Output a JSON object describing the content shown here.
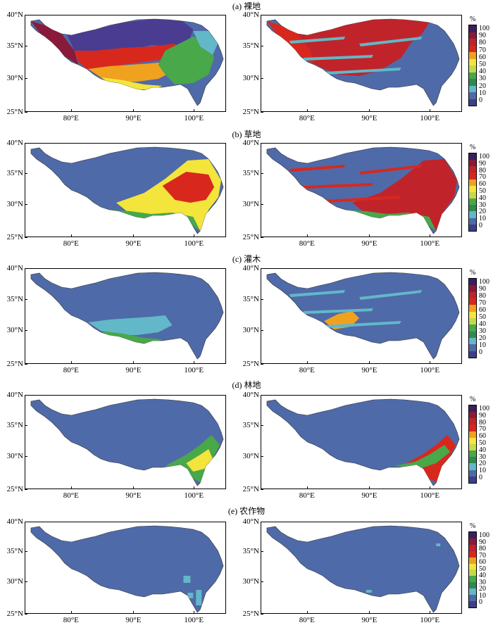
{
  "panels": [
    {
      "title": "(a) 裸地",
      "regions_left": [
        {
          "shape": "north",
          "color": "#4a3d91"
        },
        {
          "shape": "west",
          "color": "#8a1a3a"
        },
        {
          "shape": "central",
          "color": "#d8281e"
        },
        {
          "shape": "mid",
          "color": "#f0a21f"
        },
        {
          "shape": "south",
          "color": "#f3e53b"
        },
        {
          "shape": "east",
          "color": "#48a84a"
        },
        {
          "shape": "far_east",
          "color": "#62b8c8"
        }
      ],
      "regions_right": [
        {
          "shape": "north_big",
          "color": "#c0242a"
        },
        {
          "shape": "west",
          "color": "#d8281e"
        },
        {
          "shape": "streaks",
          "color": "#62b8c8"
        }
      ]
    },
    {
      "title": "(b) 草地",
      "regions_left": [
        {
          "shape": "east_big",
          "color": "#f3e53b"
        },
        {
          "shape": "east_core",
          "color": "#d8281e"
        },
        {
          "shape": "south_green",
          "color": "#48a84a"
        }
      ],
      "regions_right": [
        {
          "shape": "east_big",
          "color": "#c0242a"
        },
        {
          "shape": "streaks",
          "color": "#d8281e"
        },
        {
          "shape": "south_green",
          "color": "#48a84a"
        }
      ]
    },
    {
      "title": "(c) 灌木",
      "regions_left": [
        {
          "shape": "mid",
          "color": "#62b8c8"
        },
        {
          "shape": "south",
          "color": "#48a84a"
        }
      ],
      "regions_right": [
        {
          "shape": "mid_small",
          "color": "#f0a21f"
        },
        {
          "shape": "streaks",
          "color": "#62b8c8"
        }
      ]
    },
    {
      "title": "(d) 林地",
      "regions_left": [
        {
          "shape": "southeast",
          "color": "#48a84a"
        },
        {
          "shape": "southeast_core",
          "color": "#f3e53b"
        }
      ],
      "regions_right": [
        {
          "shape": "southeast",
          "color": "#d8281e"
        },
        {
          "shape": "southeast_fringe",
          "color": "#48a84a"
        }
      ]
    },
    {
      "title": "(e) 农作物",
      "regions_left": [
        {
          "shape": "southeast_dots",
          "color": "#62b8c8"
        }
      ],
      "regions_right": [
        {
          "shape": "sparse",
          "color": "#62b8c8"
        }
      ]
    }
  ],
  "axes": {
    "lat_labels": [
      "40°N",
      "35°N",
      "30°N",
      "25°N"
    ],
    "lon_labels": [
      "80°E",
      "90°E",
      "100°E"
    ]
  },
  "colorbar": {
    "unit": "%",
    "labels": [
      "100",
      "90",
      "80",
      "70",
      "60",
      "50",
      "40",
      "30",
      "20",
      "10",
      "0"
    ],
    "colors": [
      "#3e1f5e",
      "#8a1a3a",
      "#c0242a",
      "#d8281e",
      "#f0a21f",
      "#f3e53b",
      "#c5d94a",
      "#48a84a",
      "#2f8a4e",
      "#62b8c8",
      "#4f6aa8",
      "#3b3f8c"
    ]
  },
  "colors": {
    "background_land": "#4f6aa8"
  }
}
